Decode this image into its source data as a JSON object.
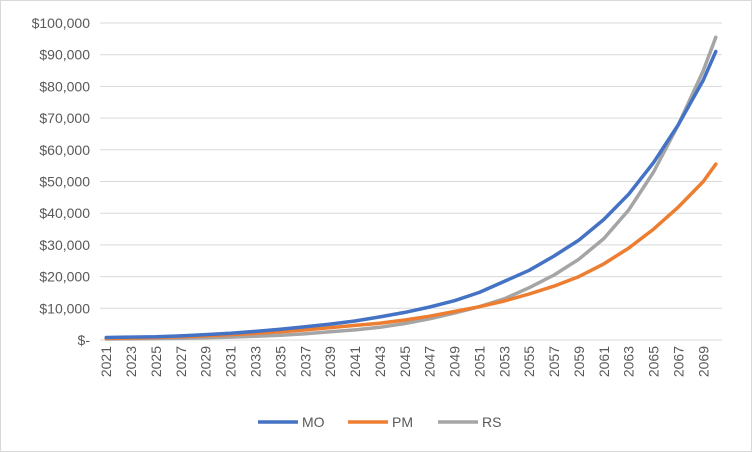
{
  "chart_data": {
    "type": "line",
    "title": "",
    "xlabel": "",
    "ylabel": "",
    "ylim": [
      0,
      100000
    ],
    "y_ticks": [
      0,
      10000,
      20000,
      30000,
      40000,
      50000,
      60000,
      70000,
      80000,
      90000,
      100000
    ],
    "y_tick_labels": [
      "$-",
      "$10,000",
      "$20,000",
      "$30,000",
      "$40,000",
      "$50,000",
      "$60,000",
      "$70,000",
      "$80,000",
      "$90,000",
      "$100,000"
    ],
    "x_tick_labels": [
      "2021",
      "2023",
      "2025",
      "2027",
      "2029",
      "2031",
      "2033",
      "2035",
      "2037",
      "2039",
      "2041",
      "2043",
      "2045",
      "2047",
      "2049",
      "2051",
      "2053",
      "2055",
      "2057",
      "2059",
      "2061",
      "2063",
      "2065",
      "2067",
      "2069"
    ],
    "x_start": 2021,
    "x_end": 2070,
    "grid": true,
    "legend_position": "bottom",
    "series": [
      {
        "name": "MO",
        "color": "#4472C4",
        "x": [
          2021,
          2023,
          2025,
          2027,
          2029,
          2031,
          2033,
          2035,
          2037,
          2039,
          2041,
          2043,
          2045,
          2047,
          2049,
          2051,
          2053,
          2055,
          2057,
          2059,
          2061,
          2063,
          2065,
          2067,
          2069,
          2070
        ],
        "values": [
          800,
          900,
          1000,
          1300,
          1700,
          2100,
          2700,
          3400,
          4200,
          5000,
          6000,
          7300,
          8700,
          10400,
          12400,
          15000,
          18500,
          22000,
          26500,
          31500,
          38000,
          46000,
          56000,
          68000,
          82000,
          91000
        ]
      },
      {
        "name": "PM",
        "color": "#ED7D31",
        "x": [
          2021,
          2023,
          2025,
          2027,
          2029,
          2031,
          2033,
          2035,
          2037,
          2039,
          2041,
          2043,
          2045,
          2047,
          2049,
          2051,
          2053,
          2055,
          2057,
          2059,
          2061,
          2063,
          2065,
          2067,
          2069,
          2070
        ],
        "values": [
          500,
          600,
          800,
          1000,
          1300,
          1700,
          2100,
          2600,
          3200,
          3900,
          4600,
          5300,
          6300,
          7500,
          9000,
          10500,
          12300,
          14500,
          17000,
          20000,
          24000,
          29000,
          35000,
          42000,
          50000,
          55500
        ]
      },
      {
        "name": "RS",
        "color": "#A5A5A5",
        "x": [
          2021,
          2023,
          2025,
          2027,
          2029,
          2031,
          2033,
          2035,
          2037,
          2039,
          2041,
          2043,
          2045,
          2047,
          2049,
          2051,
          2053,
          2055,
          2057,
          2059,
          2061,
          2063,
          2065,
          2067,
          2069,
          2070
        ],
        "values": [
          300,
          350,
          450,
          550,
          700,
          900,
          1200,
          1500,
          2000,
          2600,
          3200,
          4000,
          5200,
          6700,
          8500,
          10500,
          13000,
          16500,
          20500,
          25500,
          32000,
          41000,
          53000,
          68000,
          85000,
          95500
        ]
      }
    ]
  }
}
